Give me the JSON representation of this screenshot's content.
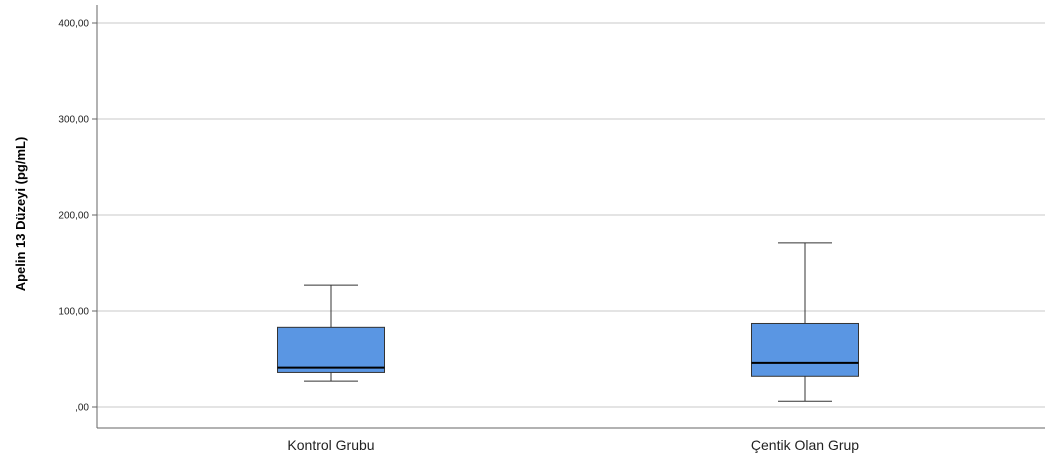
{
  "chart_data": {
    "type": "box",
    "title": "",
    "xlabel": "",
    "ylabel": "Apelin 13 Düzeyi (pg/mL)",
    "ylim": [
      -20,
      420
    ],
    "yticks": [
      0,
      100,
      200,
      300,
      400
    ],
    "ytick_labels": [
      ",00",
      "100,00",
      "200,00",
      "300,00",
      "400,00"
    ],
    "grid": "horizontal",
    "box_color": "#5a96e3",
    "categories": [
      "Kontrol Grubu",
      "Çentik Olan Grup"
    ],
    "boxes": [
      {
        "whisker_low": 27,
        "q1": 36,
        "median": 41,
        "q3": 83,
        "whisker_high": 127
      },
      {
        "whisker_low": 6,
        "q1": 32,
        "median": 46,
        "q3": 87,
        "whisker_high": 171
      }
    ]
  }
}
